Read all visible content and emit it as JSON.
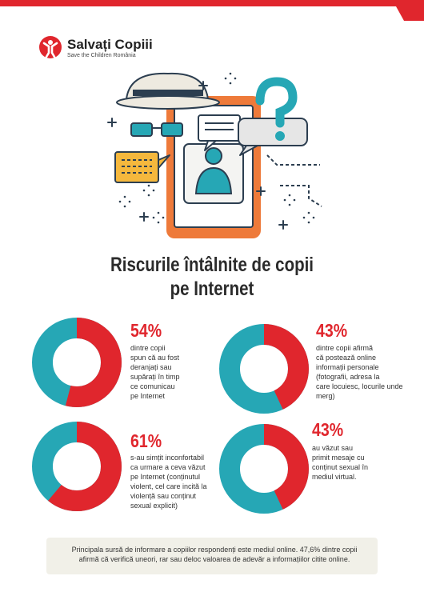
{
  "header": {
    "logo_name": "Salvați Copiii",
    "logo_subtitle": "Save the Children România",
    "accent_color": "#e0262d"
  },
  "title": {
    "line1": "Riscurile întâlnite de copii",
    "line2": "pe Internet"
  },
  "stats": [
    {
      "percent": "54%",
      "value": 0.54,
      "description_lines": [
        "dintre copii",
        "spun că au fost",
        "deranjați sau",
        "supărați în timp",
        "ce comunicau",
        "pe Internet"
      ]
    },
    {
      "percent": "43%",
      "value": 0.43,
      "description_lines": [
        "dintre copii afirmă",
        "că postează online",
        "informații personale",
        "(fotografii, adresa la",
        "care locuiesc, locurile unde merg)"
      ]
    },
    {
      "percent": "61%",
      "value": 0.61,
      "description_lines": [
        "s-au simțit inconfortabil",
        "ca urmare a ceva văzut",
        "pe Internet (conținutul",
        "violent, cel care incită la",
        "violență sau conținut",
        "sexual explicit)"
      ]
    },
    {
      "percent": "43%",
      "value": 0.43,
      "description_lines": [
        "au văzut sau",
        "primit mesaje cu",
        "conținut sexual în",
        "mediul virtual."
      ]
    }
  ],
  "colors": {
    "red": "#e0262d",
    "teal": "#26a7b5",
    "orange": "#ee7a3a",
    "yellow": "#f5b83d",
    "navy": "#2c3e50",
    "hat": "#eeeae0"
  },
  "footer_note": {
    "line1": "Principala sursă de informare a copiilor respondenți este mediul online. 47,6% dintre copii",
    "line2": "afirmă că verifică uneori, rar sau deloc valoarea de adevăr a informațiilor citite online."
  }
}
